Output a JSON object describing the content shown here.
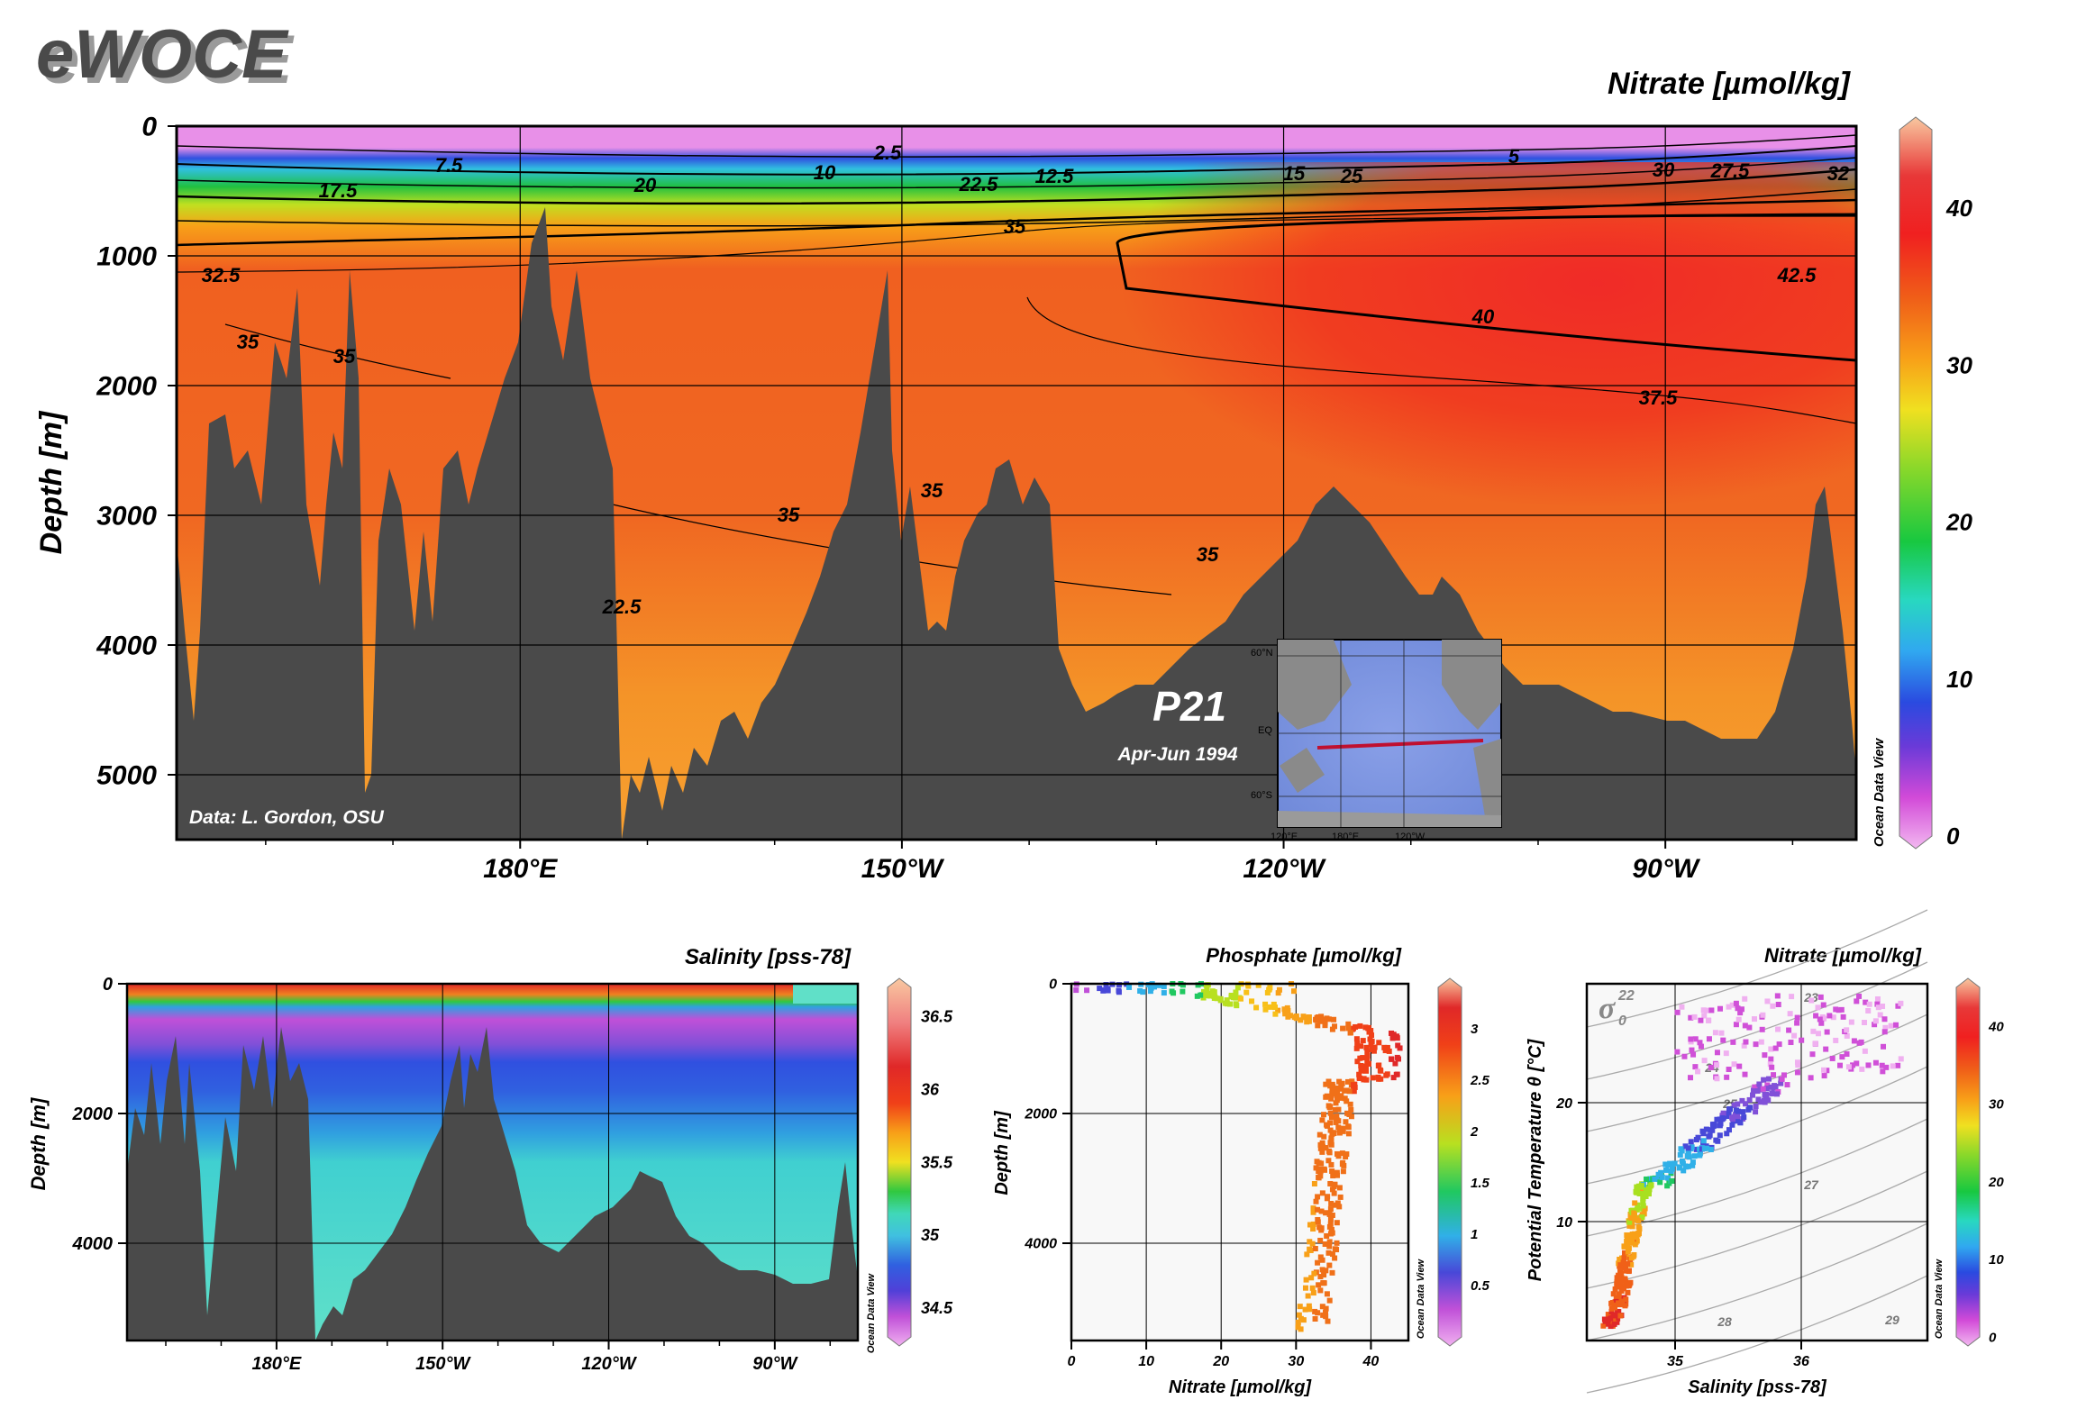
{
  "logo": "eWOCE",
  "chart_data": [
    {
      "type": "heatmap",
      "id": "main-section",
      "title": "Nitrate [µmol/kg]",
      "ylabel": "Depth [m]",
      "xlabel": "",
      "y_ticks": [
        "0",
        "1000",
        "2000",
        "3000",
        "4000",
        "5000"
      ],
      "y_tick_values": [
        0,
        1000,
        2000,
        3000,
        4000,
        5000
      ],
      "ylim": [
        0,
        5500
      ],
      "x_ticks": [
        "180°E",
        "150°W",
        "120°W",
        "90°W"
      ],
      "x_tick_values": [
        180,
        210,
        240,
        270
      ],
      "xlim": [
        153,
        285
      ],
      "colorbar": {
        "ticks": [
          "0",
          "10",
          "20",
          "30",
          "40"
        ],
        "values": [
          0,
          10,
          20,
          30,
          40
        ],
        "range": [
          0,
          45
        ]
      },
      "contour_labels": [
        "2.5",
        "5",
        "7.5",
        "10",
        "12.5",
        "15",
        "17.5",
        "20",
        "22.5",
        "25",
        "27.5",
        "30",
        "32",
        "32.5",
        "35",
        "35",
        "35",
        "35",
        "35",
        "35",
        "37.5",
        "40",
        "42.5",
        "22.5"
      ],
      "annotations": {
        "section": "P21",
        "period": "Apr-Jun 1994",
        "credit": "Data: L. Gordon, OSU",
        "odv": "Ocean Data View",
        "map_labels": [
          "60°N",
          "EQ",
          "60°S",
          "120°E",
          "180°E",
          "120°W"
        ]
      }
    },
    {
      "type": "heatmap",
      "id": "salinity-section",
      "title": "Salinity [pss-78]",
      "ylabel": "Depth [m]",
      "y_ticks": [
        "0",
        "2000",
        "4000"
      ],
      "y_tick_values": [
        0,
        2000,
        4000
      ],
      "ylim": [
        0,
        5500
      ],
      "x_ticks": [
        "180°E",
        "150°W",
        "120°W",
        "90°W"
      ],
      "x_tick_values": [
        180,
        210,
        240,
        270
      ],
      "xlim": [
        153,
        285
      ],
      "colorbar": {
        "ticks": [
          "34.5",
          "35",
          "35.5",
          "36",
          "36.5"
        ],
        "values": [
          34.5,
          35,
          35.5,
          36,
          36.5
        ],
        "range": [
          34.3,
          36.7
        ]
      },
      "odv": "Ocean Data View"
    },
    {
      "type": "scatter",
      "id": "phosphate-scatter",
      "title": "Phosphate [µmol/kg]",
      "xlabel": "Nitrate [µmol/kg]",
      "ylabel": "Depth [m]",
      "x_ticks": [
        "0",
        "10",
        "20",
        "30",
        "40"
      ],
      "x_tick_values": [
        0,
        10,
        20,
        30,
        40
      ],
      "xlim": [
        0,
        45
      ],
      "y_ticks": [
        "0",
        "2000",
        "4000"
      ],
      "y_tick_values": [
        0,
        2000,
        4000
      ],
      "ylim": [
        0,
        5500
      ],
      "colorbar": {
        "ticks": [
          "0.5",
          "1",
          "1.5",
          "2",
          "2.5",
          "3"
        ],
        "values": [
          0.5,
          1,
          1.5,
          2,
          2.5,
          3
        ],
        "range": [
          0,
          3.4
        ]
      },
      "odv": "Ocean Data View"
    },
    {
      "type": "scatter",
      "id": "ts-scatter",
      "title": "Nitrate [µmol/kg]",
      "xlabel": "Salinity [pss-78]",
      "ylabel": "Potential Temperature θ [°C]",
      "x_ticks": [
        "35",
        "36"
      ],
      "x_tick_values": [
        35,
        36
      ],
      "xlim": [
        34.3,
        37.0
      ],
      "y_ticks": [
        "10",
        "20"
      ],
      "y_tick_values": [
        10,
        20
      ],
      "ylim": [
        0,
        30
      ],
      "sigma_label": "σ",
      "sigma_sub": "0",
      "sigma_sup": "22",
      "isopycnal_labels": [
        "23",
        "24",
        "25",
        "27",
        "28",
        "29"
      ],
      "colorbar": {
        "ticks": [
          "0",
          "10",
          "20",
          "30",
          "40"
        ],
        "values": [
          0,
          10,
          20,
          30,
          40
        ],
        "range": [
          0,
          45
        ]
      },
      "odv": "Ocean Data View"
    }
  ],
  "colors": {
    "topo": "#4a4a4a",
    "grid": "#000000"
  }
}
